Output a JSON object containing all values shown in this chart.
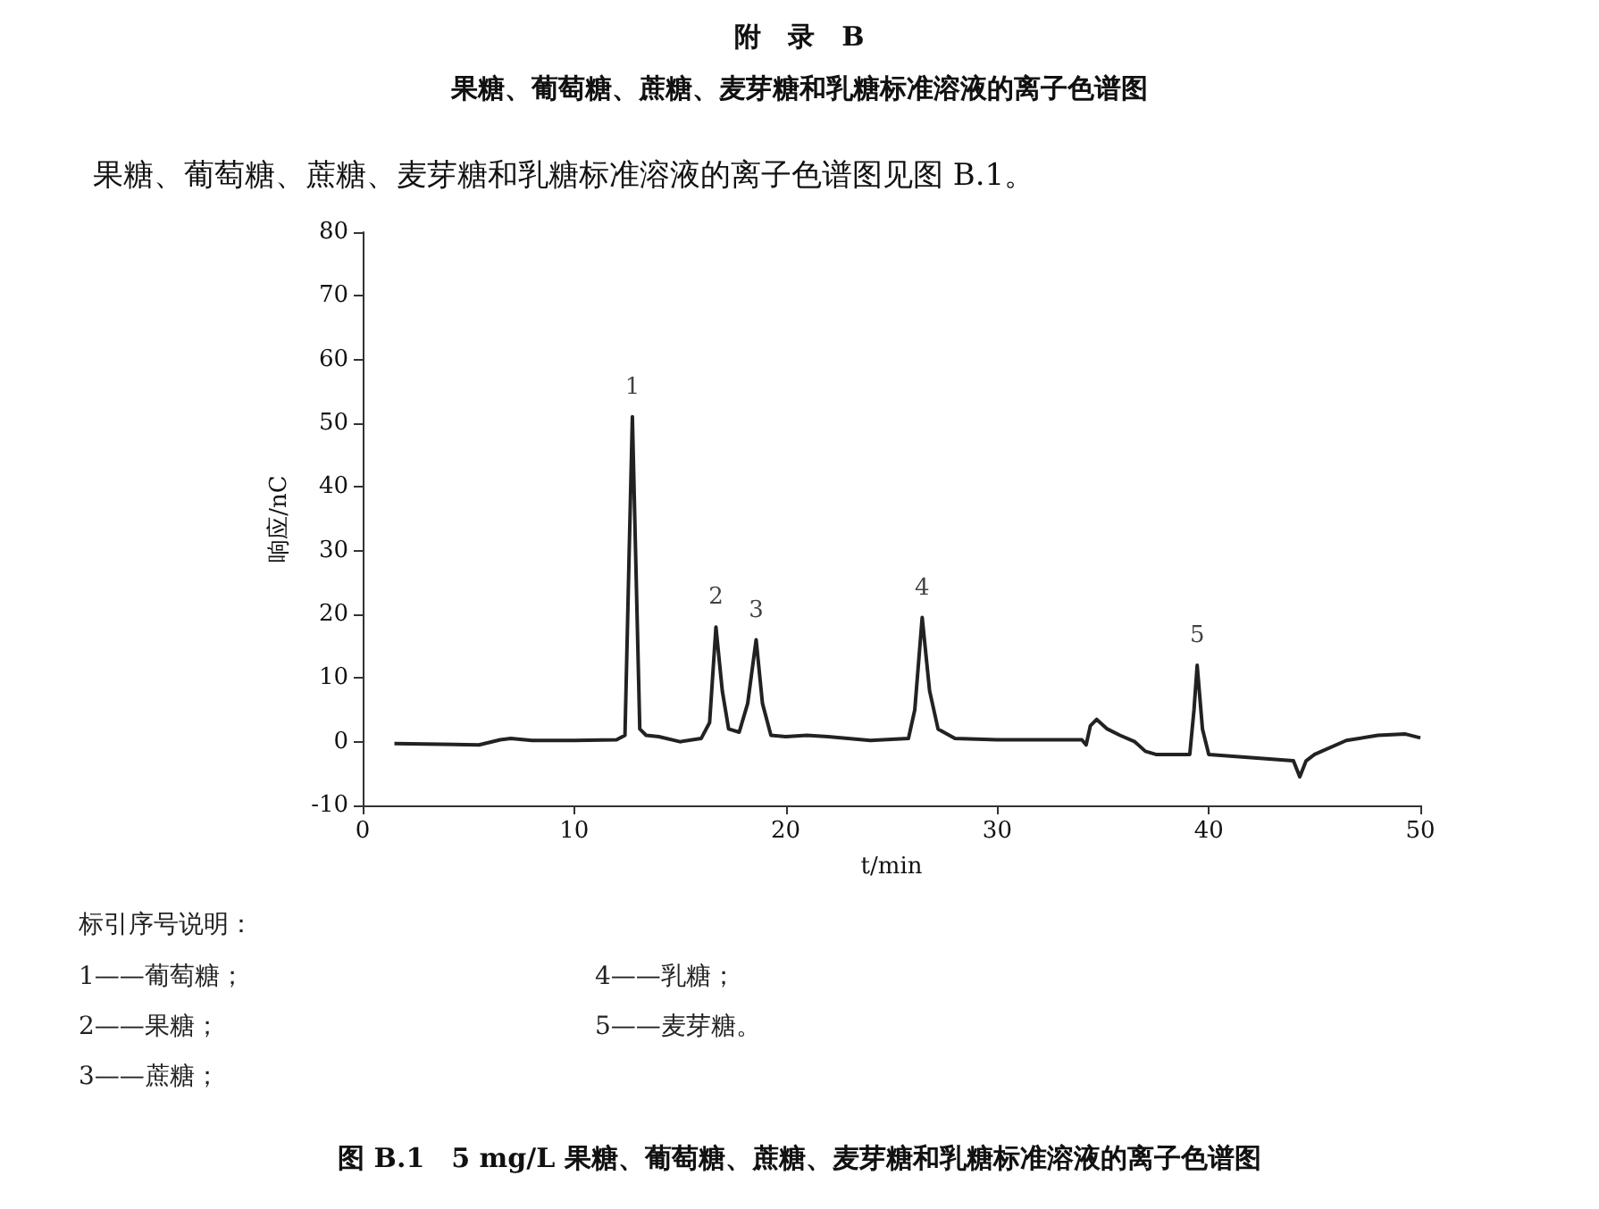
{
  "chart_data": {
    "type": "line",
    "title": "附　录　B",
    "subtitle": "果糖、葡萄糖、蔗糖、麦芽糖和乳糖标准溶液的离子色谱图",
    "xlabel": "t/min",
    "ylabel": "响应/nC",
    "x": [
      1.5,
      5.5,
      6.5,
      7,
      8,
      10,
      12,
      12.4,
      12.6,
      12.75,
      12.9,
      13.1,
      13.4,
      14,
      15,
      16,
      16.4,
      16.7,
      17,
      17.3,
      17.8,
      18.2,
      18.6,
      18.9,
      19.3,
      20,
      21,
      22,
      24,
      25.8,
      26.1,
      26.45,
      26.8,
      27.2,
      28,
      30,
      34,
      34.2,
      34.4,
      34.7,
      35.2,
      35.8,
      36.5,
      37,
      37.5,
      39.1,
      39.3,
      39.45,
      39.7,
      40,
      42,
      44,
      44.3,
      44.6,
      45,
      46.5,
      48,
      49.3,
      50
    ],
    "series": [
      {
        "color": "#222222",
        "values": [
          -0.3,
          -0.5,
          0.3,
          0.5,
          0.2,
          0.2,
          0.3,
          1,
          30,
          51,
          30,
          2,
          1,
          0.8,
          0,
          0.5,
          3,
          18,
          8,
          2,
          1.5,
          6,
          16,
          6,
          1,
          0.8,
          1,
          0.8,
          0.2,
          0.5,
          5,
          19.5,
          8,
          2,
          0.5,
          0.3,
          0.3,
          -0.5,
          2.5,
          3.5,
          2,
          1,
          0,
          -1.5,
          -2,
          -2,
          5,
          12,
          2,
          -2,
          -2.5,
          -3,
          -5.5,
          -3,
          -2,
          0.2,
          1,
          1.2,
          0.6
        ]
      }
    ],
    "xlim": [
      0,
      50
    ],
    "xticks": [
      0,
      10,
      20,
      30,
      40,
      50
    ],
    "ylim": [
      -10,
      80
    ],
    "yticks": [
      -10,
      0,
      10,
      20,
      30,
      40,
      50,
      60,
      70,
      80
    ],
    "grid": false,
    "marker": "none",
    "line_style": "solid",
    "annotations": [
      "果糖、葡萄糖、蔗糖、麦芽糖和乳糖标准溶液的离子色谱图见图 B.1。",
      {
        "text": "1",
        "x": 12.75,
        "y": 51
      },
      {
        "text": "2",
        "x": 16.7,
        "y": 18
      },
      {
        "text": "3",
        "x": 18.6,
        "y": 16
      },
      {
        "text": "4",
        "x": 26.45,
        "y": 19.5
      },
      {
        "text": "5",
        "x": 39.45,
        "y": 12
      },
      "标引序号说明：",
      "1——葡萄糖；",
      "2——果糖；",
      "3——蔗糖；",
      "4——乳糖；",
      "5——麦芽糖。",
      "图 B.1　5 mg/L 果糖、葡萄糖、蔗糖、麦芽糖和乳糖标准溶液的离子色谱图"
    ]
  }
}
